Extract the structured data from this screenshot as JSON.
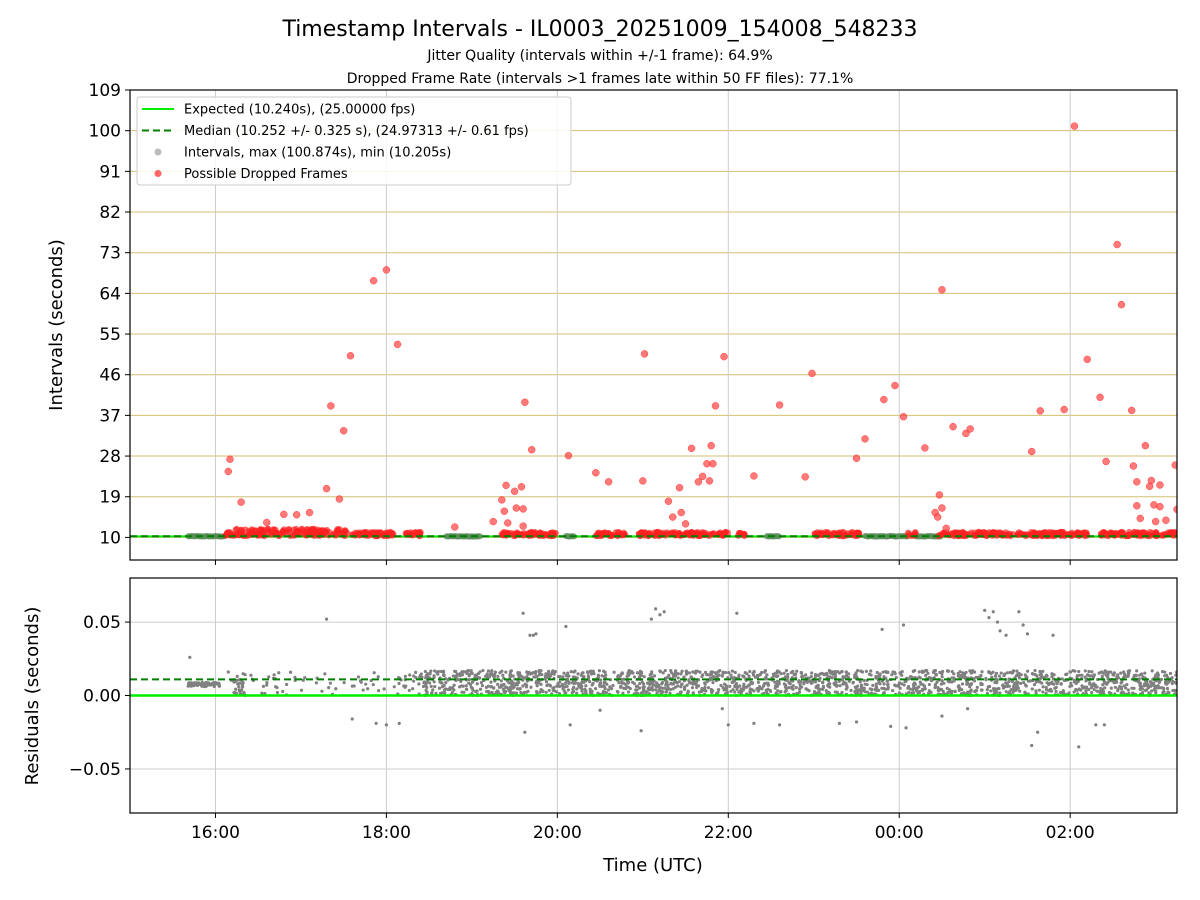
{
  "title": "Timestamp Intervals - IL0003_20251009_154008_548233",
  "subtitle_1": "Jitter Quality (intervals within +/-1 frame): 64.9%",
  "subtitle_2": "Dropped Frame Rate (intervals >1 frames late within 50 FF files): 77.1%",
  "chart_data": [
    {
      "type": "scatter",
      "panel": "top",
      "ylabel": "Intervals (seconds)",
      "xlabel": "",
      "xlim": [
        15.0,
        27.25
      ],
      "ylim": [
        5,
        109
      ],
      "yticks": [
        10,
        19,
        28,
        37,
        46,
        55,
        64,
        73,
        82,
        91,
        100,
        109
      ],
      "ytick_labels": [
        "10",
        "19",
        "28",
        "37",
        "46",
        "55",
        "64",
        "73",
        "82",
        "91",
        "100",
        "109"
      ],
      "grid_color": "#d4bf70",
      "legend_location": "upper-left",
      "legend": [
        {
          "label": "Expected (10.240s), (25.00000 fps)",
          "kind": "line",
          "color": "#00ee00"
        },
        {
          "label": "Median (10.252 +/- 0.325 s), (24.97313 +/- 0.61 fps)",
          "kind": "dashed",
          "color": "#008000"
        },
        {
          "label": "Intervals, max (100.874s), min (10.205s)",
          "kind": "dot",
          "color": "#aaaaaa"
        },
        {
          "label": "Possible Dropped Frames",
          "kind": "dot",
          "color": "#ff4040"
        }
      ],
      "expected_interval": 10.24,
      "median_interval": 10.252,
      "normal_interval_spans": [
        [
          15.68,
          16.12
        ],
        [
          18.7,
          19.1
        ],
        [
          20.1,
          20.2
        ],
        [
          22.45,
          22.6
        ],
        [
          23.6,
          24.1
        ],
        [
          24.2,
          24.5
        ]
      ],
      "dropped_band_spans": [
        [
          16.1,
          17.55
        ],
        [
          17.6,
          18.1
        ],
        [
          18.2,
          18.4
        ],
        [
          19.35,
          20.0
        ],
        [
          20.45,
          20.8
        ],
        [
          20.95,
          22.0
        ],
        [
          22.1,
          22.2
        ],
        [
          23.0,
          23.55
        ],
        [
          24.1,
          24.2
        ],
        [
          24.45,
          26.2
        ],
        [
          26.35,
          27.25
        ]
      ],
      "series": [
        {
          "name": "Possible Dropped Frames",
          "color": "#ff4040",
          "points": [
            [
              16.15,
              24.6
            ],
            [
              16.17,
              27.3
            ],
            [
              16.3,
              17.8
            ],
            [
              16.6,
              13.3
            ],
            [
              16.8,
              15.1
            ],
            [
              16.95,
              15.0
            ],
            [
              17.1,
              15.5
            ],
            [
              17.3,
              20.8
            ],
            [
              17.35,
              39.1
            ],
            [
              17.45,
              18.5
            ],
            [
              17.5,
              33.6
            ],
            [
              17.58,
              50.2
            ],
            [
              17.85,
              66.8
            ],
            [
              18.0,
              69.2
            ],
            [
              18.13,
              52.7
            ],
            [
              18.8,
              12.3
            ],
            [
              19.25,
              13.5
            ],
            [
              19.35,
              18.3
            ],
            [
              19.38,
              15.8
            ],
            [
              19.4,
              21.5
            ],
            [
              19.42,
              13.2
            ],
            [
              19.5,
              20.2
            ],
            [
              19.52,
              16.5
            ],
            [
              19.58,
              21.2
            ],
            [
              19.6,
              16.3
            ],
            [
              19.62,
              39.9
            ],
            [
              19.7,
              29.4
            ],
            [
              19.6,
              12.5
            ],
            [
              20.13,
              28.1
            ],
            [
              20.45,
              24.3
            ],
            [
              20.6,
              22.3
            ],
            [
              21.0,
              22.5
            ],
            [
              21.02,
              50.6
            ],
            [
              21.3,
              18.0
            ],
            [
              21.35,
              14.5
            ],
            [
              21.43,
              21.0
            ],
            [
              21.45,
              15.5
            ],
            [
              21.5,
              13.0
            ],
            [
              21.57,
              29.7
            ],
            [
              21.65,
              22.3
            ],
            [
              21.7,
              23.5
            ],
            [
              21.75,
              26.3
            ],
            [
              21.78,
              22.5
            ],
            [
              21.8,
              30.3
            ],
            [
              21.82,
              26.3
            ],
            [
              21.85,
              39.1
            ],
            [
              21.95,
              50.0
            ],
            [
              22.3,
              23.6
            ],
            [
              22.6,
              39.3
            ],
            [
              22.9,
              23.4
            ],
            [
              22.98,
              46.3
            ],
            [
              23.5,
              27.5
            ],
            [
              23.6,
              31.8
            ],
            [
              23.82,
              40.5
            ],
            [
              23.95,
              43.6
            ],
            [
              24.05,
              36.7
            ],
            [
              24.3,
              29.8
            ],
            [
              24.42,
              15.5
            ],
            [
              24.45,
              14.5
            ],
            [
              24.47,
              19.4
            ],
            [
              24.5,
              16.5
            ],
            [
              24.5,
              64.8
            ],
            [
              24.63,
              34.5
            ],
            [
              24.78,
              33.0
            ],
            [
              24.83,
              34.0
            ],
            [
              25.55,
              29.0
            ],
            [
              25.65,
              38.0
            ],
            [
              25.93,
              38.3
            ],
            [
              26.2,
              49.4
            ],
            [
              26.35,
              41.0
            ],
            [
              26.42,
              26.8
            ],
            [
              26.55,
              74.8
            ],
            [
              26.6,
              61.5
            ],
            [
              26.72,
              38.1
            ],
            [
              26.74,
              25.8
            ],
            [
              26.78,
              22.3
            ],
            [
              26.78,
              17.0
            ],
            [
              26.88,
              30.3
            ],
            [
              26.93,
              21.3
            ],
            [
              26.95,
              22.6
            ],
            [
              26.98,
              17.2
            ],
            [
              27.0,
              13.5
            ],
            [
              27.05,
              21.6
            ],
            [
              27.05,
              16.8
            ],
            [
              27.12,
              13.8
            ],
            [
              27.23,
              26.0
            ],
            [
              27.25,
              16.2
            ],
            [
              26.05,
              101.0
            ],
            [
              26.82,
              14.2
            ],
            [
              24.55,
              12.0
            ]
          ]
        }
      ]
    },
    {
      "type": "scatter",
      "panel": "bottom",
      "ylabel": "Residuals (seconds)",
      "xlabel": "Time (UTC)",
      "xlim": [
        15.0,
        27.25
      ],
      "ylim": [
        -0.08,
        0.08
      ],
      "yticks": [
        -0.05,
        0.0,
        0.05
      ],
      "ytick_labels": [
        "−0.05",
        "0.00",
        "0.05"
      ],
      "xticks": [
        16,
        18,
        20,
        22,
        24,
        26
      ],
      "xtick_labels": [
        "16:00",
        "18:00",
        "20:00",
        "22:00",
        "00:00",
        "02:00"
      ],
      "grid_color": "#cccccc",
      "expected_residual": 0.0,
      "median_residual": 0.011,
      "dense_residual_spans": [
        [
          15.68,
          16.05
        ],
        [
          16.2,
          16.35
        ],
        [
          18.38,
          19.5
        ],
        [
          19.5,
          21.05
        ],
        [
          21.05,
          27.25
        ]
      ],
      "series": [
        {
          "name": "Residuals",
          "color": "#808080",
          "points": [
            [
              15.7,
              0.026
            ],
            [
              16.15,
              0.016
            ],
            [
              17.3,
              0.052
            ],
            [
              17.6,
              -0.016
            ],
            [
              17.88,
              -0.019
            ],
            [
              18.0,
              -0.02
            ],
            [
              18.15,
              -0.019
            ],
            [
              19.6,
              0.056
            ],
            [
              19.62,
              -0.025
            ],
            [
              19.68,
              0.041
            ],
            [
              19.72,
              0.041
            ],
            [
              19.75,
              0.042
            ],
            [
              20.1,
              0.047
            ],
            [
              20.15,
              -0.02
            ],
            [
              20.5,
              -0.01
            ],
            [
              20.98,
              -0.024
            ],
            [
              21.1,
              0.052
            ],
            [
              21.15,
              0.059
            ],
            [
              21.2,
              0.055
            ],
            [
              21.25,
              0.057
            ],
            [
              21.93,
              -0.009
            ],
            [
              22.0,
              -0.02
            ],
            [
              22.1,
              0.056
            ],
            [
              22.3,
              -0.019
            ],
            [
              22.6,
              -0.02
            ],
            [
              23.3,
              -0.019
            ],
            [
              23.5,
              -0.018
            ],
            [
              23.8,
              0.045
            ],
            [
              23.9,
              -0.021
            ],
            [
              24.05,
              0.048
            ],
            [
              24.08,
              -0.022
            ],
            [
              24.5,
              -0.014
            ],
            [
              24.8,
              -0.009
            ],
            [
              25.0,
              0.058
            ],
            [
              25.05,
              0.053
            ],
            [
              25.1,
              0.057
            ],
            [
              25.15,
              0.05
            ],
            [
              25.18,
              0.044
            ],
            [
              25.25,
              0.041
            ],
            [
              25.4,
              0.057
            ],
            [
              25.45,
              0.048
            ],
            [
              25.5,
              0.042
            ],
            [
              25.55,
              -0.034
            ],
            [
              25.62,
              -0.025
            ],
            [
              25.8,
              0.041
            ],
            [
              26.1,
              -0.035
            ],
            [
              26.3,
              -0.02
            ],
            [
              26.4,
              -0.02
            ]
          ]
        }
      ]
    }
  ]
}
